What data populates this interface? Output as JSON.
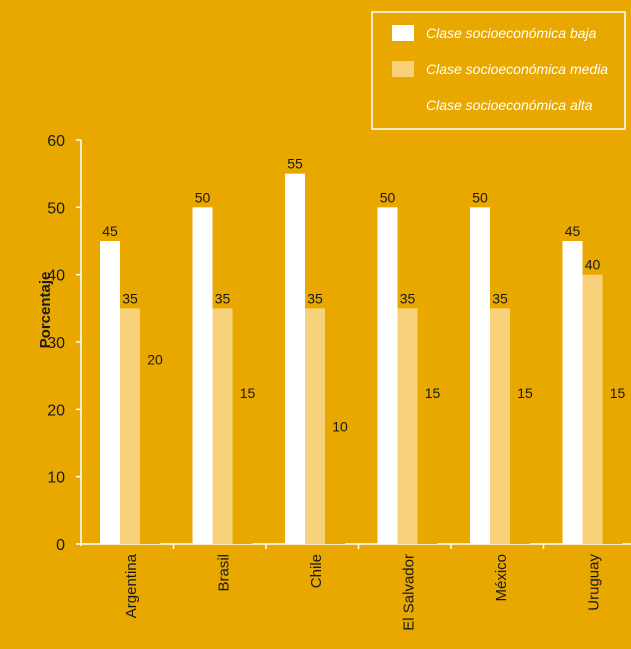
{
  "colors": {
    "background": "#e8a800",
    "axis": "#ffffff",
    "series": [
      "#ffffff",
      "#f7d27a",
      "#e8a800"
    ]
  },
  "chart_data": {
    "type": "bar",
    "categories": [
      "Argentina",
      "Brasil",
      "Chile",
      "El Salvador",
      "México",
      "Uruguay"
    ],
    "series": [
      {
        "name": "Clase socioeconómica baja",
        "values": [
          45,
          50,
          55,
          50,
          50,
          45
        ]
      },
      {
        "name": "Clase socioeconómica media",
        "values": [
          35,
          35,
          35,
          35,
          35,
          40
        ]
      },
      {
        "name": "Clase socioeconómica alta",
        "values": [
          20,
          15,
          10,
          15,
          15,
          15
        ]
      }
    ],
    "ylabel": "Porcentaje",
    "xlabel": "",
    "ylim": [
      0,
      60
    ],
    "yticks": [
      0,
      10,
      20,
      30,
      40,
      50,
      60
    ],
    "legend_position": "top-right",
    "grid": false
  }
}
